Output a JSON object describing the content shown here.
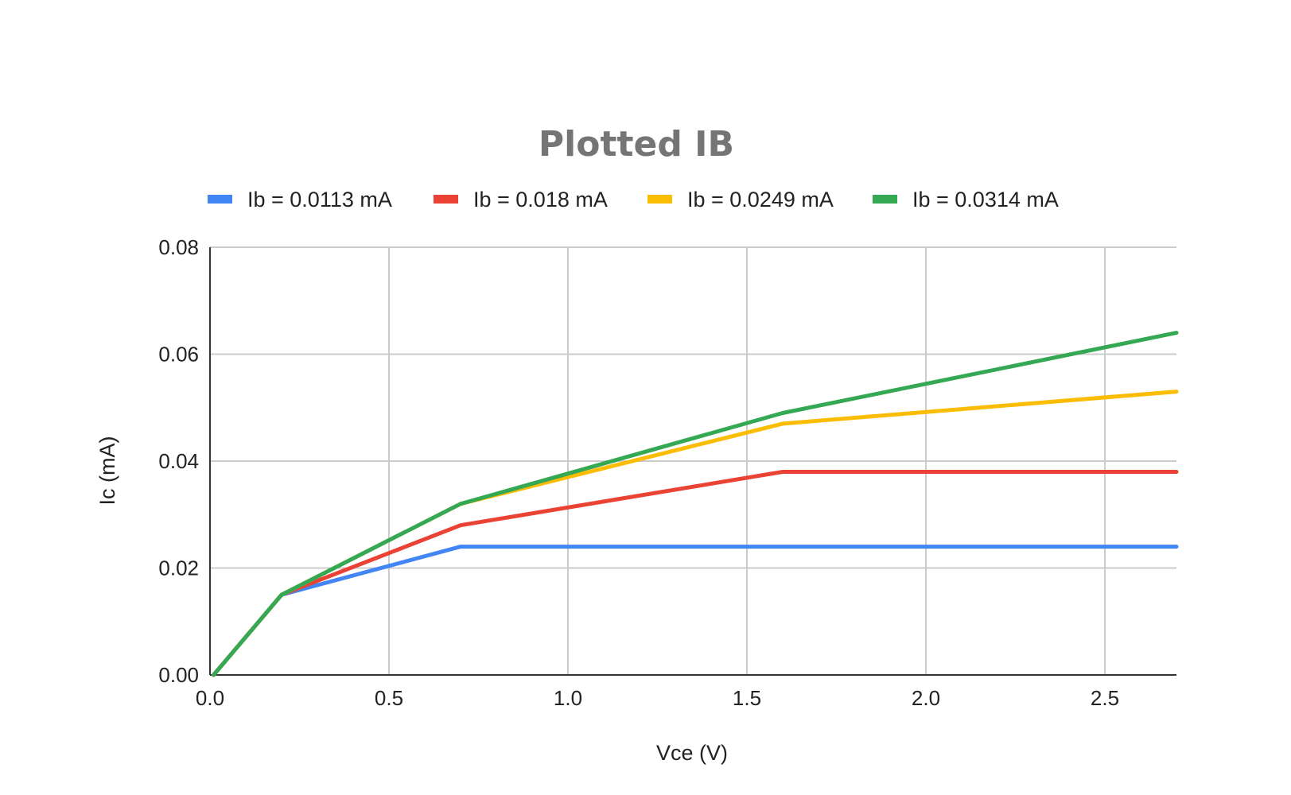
{
  "chart_data": {
    "type": "line",
    "title": "Plotted IB",
    "xlabel": "Vce (V)",
    "ylabel": "Ic (mA)",
    "xlim": [
      0,
      2.7
    ],
    "ylim": [
      0,
      0.08
    ],
    "xticks": [
      "0.0",
      "0.5",
      "1.0",
      "1.5",
      "2.0",
      "2.5"
    ],
    "yticks": [
      "0.00",
      "0.02",
      "0.04",
      "0.06",
      "0.08"
    ],
    "grid": true,
    "legend_position": "top",
    "x": [
      0.01,
      0.2,
      0.7,
      1.6,
      2.7
    ],
    "series": [
      {
        "name": "Ib = 0.0113 mA",
        "color": "#4285F4",
        "values": [
          0,
          0.015,
          0.024,
          0.024,
          0.024
        ]
      },
      {
        "name": "Ib = 0.018 mA",
        "color": "#EA4335",
        "values": [
          0,
          0.015,
          0.028,
          0.038,
          0.038
        ]
      },
      {
        "name": "Ib = 0.0249 mA",
        "color": "#FBBC04",
        "values": [
          0,
          0.015,
          0.032,
          0.047,
          0.053
        ]
      },
      {
        "name": "Ib = 0.0314 mA",
        "color": "#34A853",
        "values": [
          0,
          0.015,
          0.032,
          0.049,
          0.064
        ]
      }
    ]
  }
}
